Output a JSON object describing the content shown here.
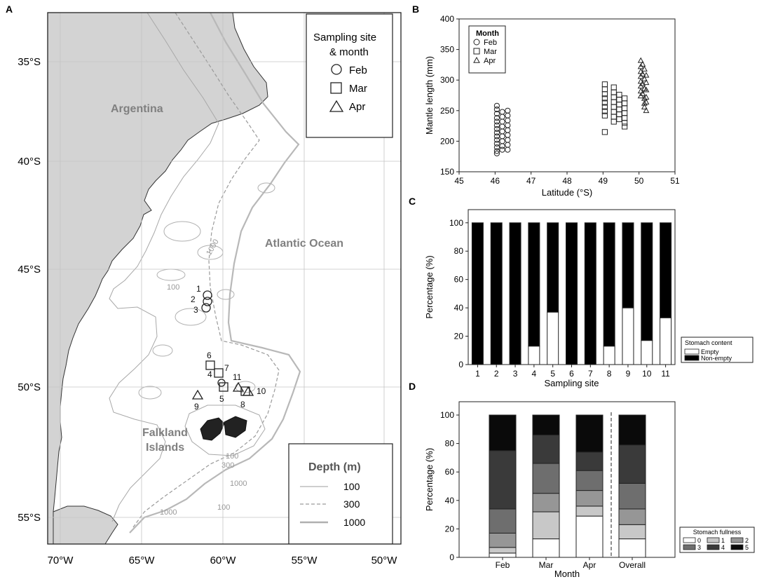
{
  "panel_labels": {
    "a": "A",
    "b": "B",
    "c": "C",
    "d": "D"
  },
  "map": {
    "lat_labels": [
      "35°S",
      "40°S",
      "45°S",
      "50°S",
      "55°S"
    ],
    "lon_labels": [
      "70°W",
      "65°W",
      "60°W",
      "55°W",
      "50°W"
    ],
    "region_labels": {
      "argentina": "Argentina",
      "ocean": "Atlantic Ocean",
      "falkland_1": "Falkland",
      "falkland_2": "Islands"
    },
    "legend_sites": {
      "title_1": "Sampling site",
      "title_2": "& month",
      "feb": "Feb",
      "mar": "Mar",
      "apr": "Apr"
    },
    "legend_depth": {
      "title": "Depth (m)",
      "d100": "100",
      "d300": "300",
      "d1000": "1000"
    },
    "contour_labels": {
      "c100_a": "100",
      "c1000_a": "1000",
      "c100_b": "100",
      "c300": "300",
      "c1000_b": "1000",
      "c100_c": "100",
      "c1000_c": "1000"
    },
    "sites": [
      {
        "id": "1",
        "month": "Feb"
      },
      {
        "id": "2",
        "month": "Feb"
      },
      {
        "id": "3",
        "month": "Feb"
      },
      {
        "id": "4",
        "month": "Mar"
      },
      {
        "id": "5",
        "month": "Mar"
      },
      {
        "id": "6",
        "month": "Mar"
      },
      {
        "id": "7",
        "month": "Mar"
      },
      {
        "id": "8",
        "month": "Apr"
      },
      {
        "id": "9",
        "month": "Apr"
      },
      {
        "id": "10",
        "month": "Apr"
      },
      {
        "id": "11",
        "month": "Apr"
      }
    ]
  },
  "chart_data": [
    {
      "panel": "B",
      "type": "scatter",
      "xlabel": "Latitude (°S)",
      "ylabel": "Mantle length (mm)",
      "xlim": [
        45,
        51
      ],
      "ylim": [
        150,
        400
      ],
      "xticks": [
        "45",
        "46",
        "47",
        "48",
        "49",
        "50",
        "51"
      ],
      "yticks": [
        "150",
        "200",
        "250",
        "300",
        "350",
        "400"
      ],
      "legend": {
        "title": "Month",
        "position": "top-left",
        "items": [
          "Feb",
          "Mar",
          "Apr"
        ]
      },
      "series": [
        {
          "name": "Feb",
          "marker": "circle",
          "points": [
            [
              46.05,
              258
            ],
            [
              46.05,
              252
            ],
            [
              46.05,
              245
            ],
            [
              46.05,
              238
            ],
            [
              46.05,
              232
            ],
            [
              46.05,
              226
            ],
            [
              46.05,
              220
            ],
            [
              46.05,
              214
            ],
            [
              46.05,
              208
            ],
            [
              46.05,
              202
            ],
            [
              46.05,
              196
            ],
            [
              46.05,
              190
            ],
            [
              46.05,
              184
            ],
            [
              46.05,
              180
            ],
            [
              46.2,
              248
            ],
            [
              46.2,
              240
            ],
            [
              46.2,
              232
            ],
            [
              46.2,
              224
            ],
            [
              46.2,
              216
            ],
            [
              46.2,
              208
            ],
            [
              46.2,
              200
            ],
            [
              46.2,
              192
            ],
            [
              46.2,
              186
            ],
            [
              46.35,
              250
            ],
            [
              46.35,
              242
            ],
            [
              46.35,
              234
            ],
            [
              46.35,
              226
            ],
            [
              46.35,
              218
            ],
            [
              46.35,
              210
            ],
            [
              46.35,
              202
            ],
            [
              46.35,
              194
            ],
            [
              46.35,
              186
            ]
          ]
        },
        {
          "name": "Mar",
          "marker": "square",
          "points": [
            [
              49.05,
              293
            ],
            [
              49.05,
              285
            ],
            [
              49.05,
              277
            ],
            [
              49.05,
              270
            ],
            [
              49.05,
              263
            ],
            [
              49.05,
              256
            ],
            [
              49.05,
              249
            ],
            [
              49.05,
              242
            ],
            [
              49.05,
              215
            ],
            [
              49.3,
              288
            ],
            [
              49.3,
              280
            ],
            [
              49.3,
              272
            ],
            [
              49.3,
              264
            ],
            [
              49.3,
              256
            ],
            [
              49.3,
              248
            ],
            [
              49.3,
              240
            ],
            [
              49.3,
              232
            ],
            [
              49.45,
              276
            ],
            [
              49.45,
              268
            ],
            [
              49.45,
              260
            ],
            [
              49.45,
              252
            ],
            [
              49.45,
              244
            ],
            [
              49.45,
              236
            ],
            [
              49.6,
              270
            ],
            [
              49.6,
              262
            ],
            [
              49.6,
              254
            ],
            [
              49.6,
              246
            ],
            [
              49.6,
              238
            ],
            [
              49.6,
              230
            ],
            [
              49.6,
              224
            ]
          ]
        },
        {
          "name": "Apr",
          "marker": "triangle",
          "points": [
            [
              50.05,
              332
            ],
            [
              50.05,
              322
            ],
            [
              50.05,
              314
            ],
            [
              50.05,
              306
            ],
            [
              50.05,
              298
            ],
            [
              50.05,
              290
            ],
            [
              50.05,
              282
            ],
            [
              50.05,
              274
            ],
            [
              50.1,
              326
            ],
            [
              50.1,
              310
            ],
            [
              50.1,
              294
            ],
            [
              50.1,
              278
            ],
            [
              50.15,
              318
            ],
            [
              50.15,
              302
            ],
            [
              50.15,
              286
            ],
            [
              50.15,
              270
            ],
            [
              50.15,
              262
            ],
            [
              50.15,
              256
            ],
            [
              50.2,
              308
            ],
            [
              50.2,
              296
            ],
            [
              50.2,
              284
            ],
            [
              50.2,
              272
            ],
            [
              50.2,
              264
            ],
            [
              50.2,
              250
            ]
          ]
        }
      ]
    },
    {
      "panel": "C",
      "type": "bar",
      "stacked": true,
      "xlabel": "Sampling site",
      "ylabel": "Percentage (%)",
      "ylim": [
        0,
        100
      ],
      "yticks": [
        "0",
        "20",
        "40",
        "60",
        "80",
        "100"
      ],
      "categories": [
        "1",
        "2",
        "3",
        "4",
        "5",
        "6",
        "7",
        "8",
        "9",
        "10",
        "11"
      ],
      "legend": {
        "title": "Stomach content",
        "position": "bottom-right"
      },
      "series": [
        {
          "name": "Empty",
          "color": "#ffffff",
          "values": [
            0,
            0,
            0,
            13,
            37,
            0,
            0,
            13,
            40,
            17,
            33
          ]
        },
        {
          "name": "Non-empty",
          "color": "#000000",
          "values": [
            100,
            100,
            100,
            87,
            63,
            100,
            100,
            87,
            60,
            83,
            67
          ]
        }
      ]
    },
    {
      "panel": "D",
      "type": "bar",
      "stacked": true,
      "xlabel": "Month",
      "ylabel": "Percentage (%)",
      "ylim": [
        0,
        100
      ],
      "yticks": [
        "0",
        "20",
        "40",
        "60",
        "80",
        "100"
      ],
      "categories": [
        "Feb",
        "Mar",
        "Apr",
        "Overall"
      ],
      "legend": {
        "title": "Stomach fullness",
        "position": "bottom-right"
      },
      "series": [
        {
          "name": "0",
          "color": "#ffffff",
          "values": [
            3,
            13,
            29,
            13
          ]
        },
        {
          "name": "1",
          "color": "#c8c8c8",
          "values": [
            4,
            19,
            7,
            10
          ]
        },
        {
          "name": "2",
          "color": "#969696",
          "values": [
            10,
            13,
            11,
            11
          ]
        },
        {
          "name": "3",
          "color": "#6e6e6e",
          "values": [
            17,
            21,
            14,
            18
          ]
        },
        {
          "name": "4",
          "color": "#3a3a3a",
          "values": [
            41,
            20,
            13,
            27
          ]
        },
        {
          "name": "5",
          "color": "#0a0a0a",
          "values": [
            25,
            14,
            26,
            21
          ]
        }
      ]
    }
  ]
}
